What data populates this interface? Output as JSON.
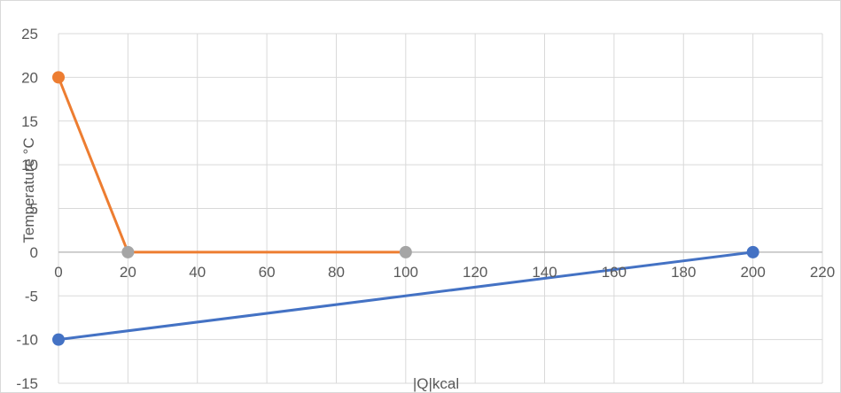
{
  "chart_data": {
    "type": "scatter",
    "title": "",
    "xlabel": "|Q|kcal",
    "ylabel": "Temperature °C",
    "xlim": [
      0,
      220
    ],
    "ylim": [
      -15,
      25
    ],
    "x_ticks": [
      "0",
      "20",
      "40",
      "60",
      "80",
      "100",
      "120",
      "140",
      "160",
      "180",
      "200",
      "220"
    ],
    "y_ticks": [
      "25",
      "20",
      "15",
      "10",
      "5",
      "0",
      "-5",
      "-10",
      "-15"
    ],
    "grid": true,
    "legend": "none",
    "series": [
      {
        "color": "#ed7d31",
        "points": [
          {
            "x": 0,
            "y": 20,
            "marker_color": "#ed7d31"
          },
          {
            "x": 20,
            "y": 0,
            "marker_color": "#a5a5a5"
          },
          {
            "x": 100,
            "y": 0,
            "marker_color": "#a5a5a5"
          }
        ]
      },
      {
        "color": "#4472c4",
        "points": [
          {
            "x": 0,
            "y": -10,
            "marker_color": "#4472c4"
          },
          {
            "x": 200,
            "y": 0,
            "marker_color": "#4472c4"
          }
        ]
      }
    ]
  }
}
